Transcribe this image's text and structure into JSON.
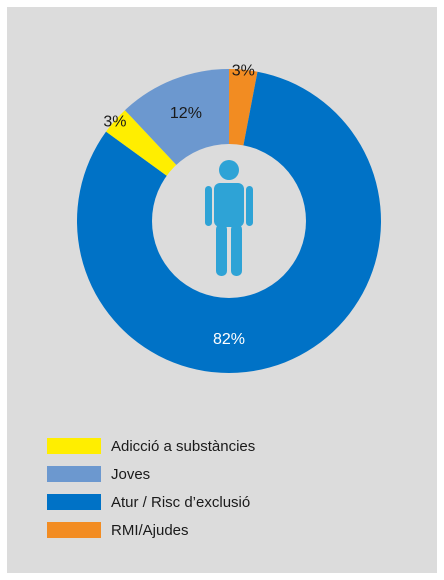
{
  "chart_data": {
    "type": "pie",
    "variant": "donut",
    "categories": [
      "Adicció a substàncies",
      "Joves",
      "Atur / Risc d’exclusió",
      "RMI/Ajudes"
    ],
    "values": [
      3,
      12,
      82,
      3
    ],
    "labels": [
      "3%",
      "12%",
      "82%",
      "3%"
    ],
    "colors": [
      "#ffee00",
      "#6c98cf",
      "#0072c6",
      "#f28c22"
    ],
    "legend_position": "bottom-left",
    "center_icon": "person-icon"
  },
  "background_color": "#dcdcdc"
}
